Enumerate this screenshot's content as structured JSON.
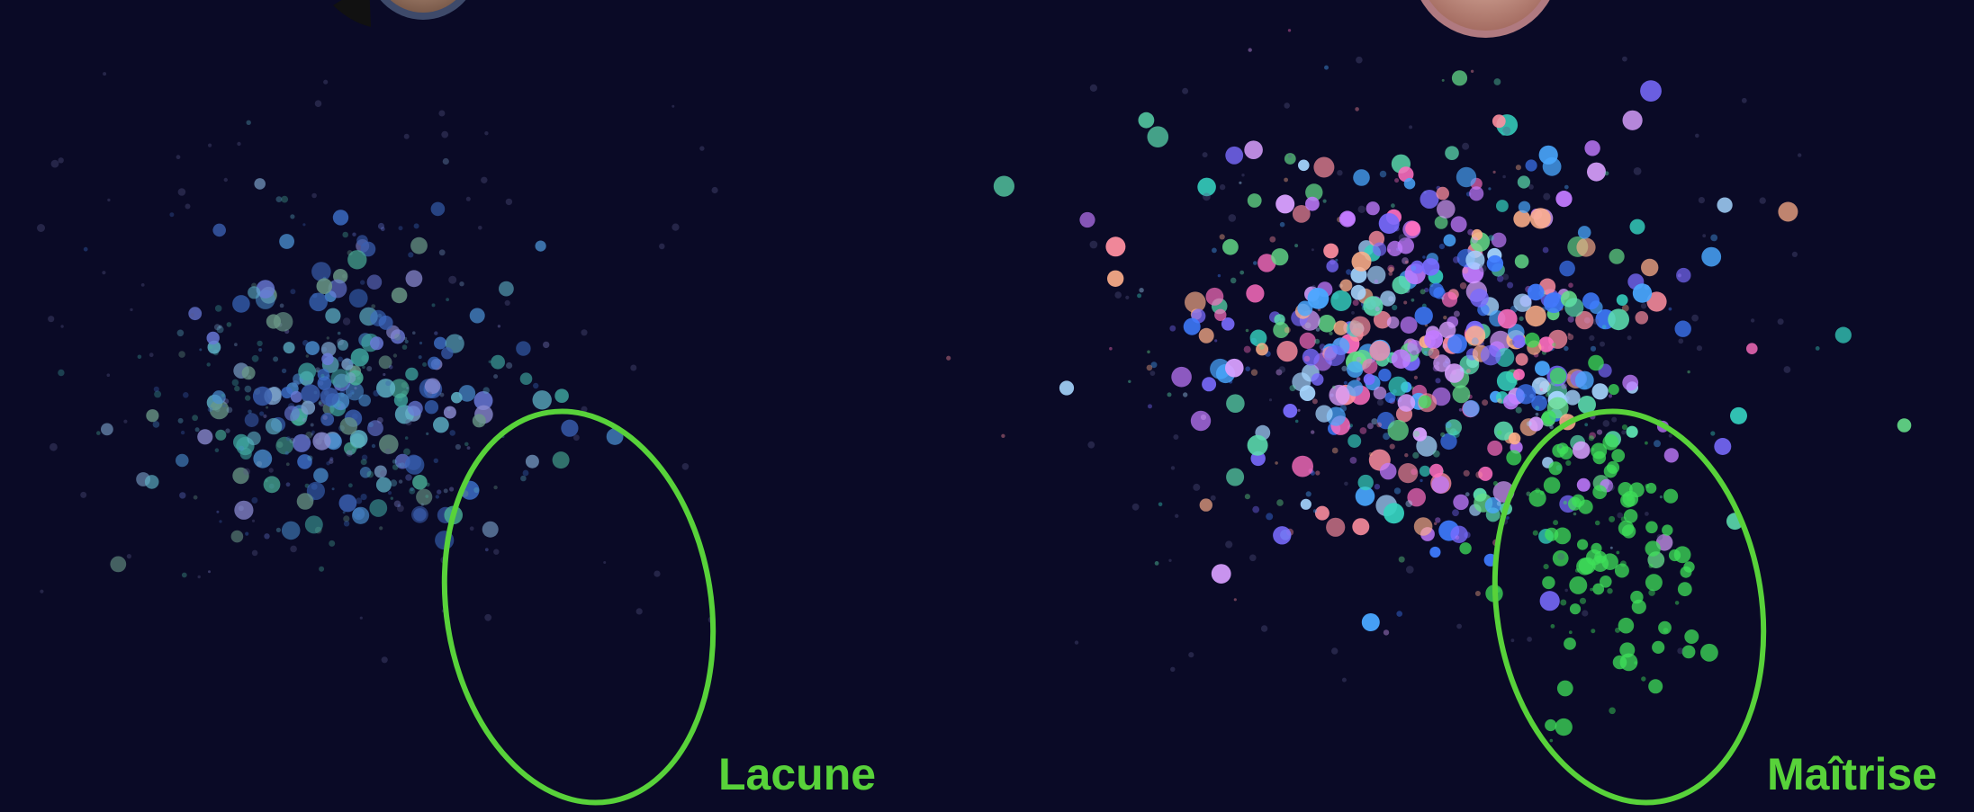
{
  "colors": {
    "background": "#0a0a26",
    "accent": "#58d23a"
  },
  "panels": [
    {
      "label": "Lacune",
      "avatar": "avatar-icon",
      "points_density": "sparse"
    },
    {
      "label": "Maîtrise",
      "avatar": "avatar-icon",
      "points_density": "dense"
    }
  ]
}
